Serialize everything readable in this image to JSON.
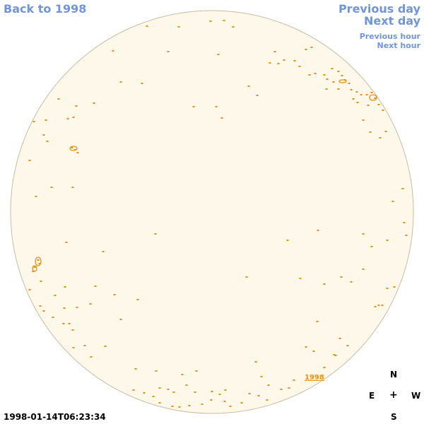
{
  "nav": {
    "back_label": "Back to 1998",
    "prev_day_label": "Previous day",
    "next_day_label": "Next day",
    "prev_hour_label": "Previous hour",
    "next_hour_label": "Next hour"
  },
  "disk": {
    "marker_label": "1998",
    "fill_color": "#fdf8ea",
    "outline_color": "#c9bca4",
    "feature_color": "#e8910f"
  },
  "timestamp": "1998-01-14T06:23:34",
  "compass": {
    "north": "N",
    "east": "E",
    "center": "+",
    "west": "W",
    "south": "S"
  }
}
